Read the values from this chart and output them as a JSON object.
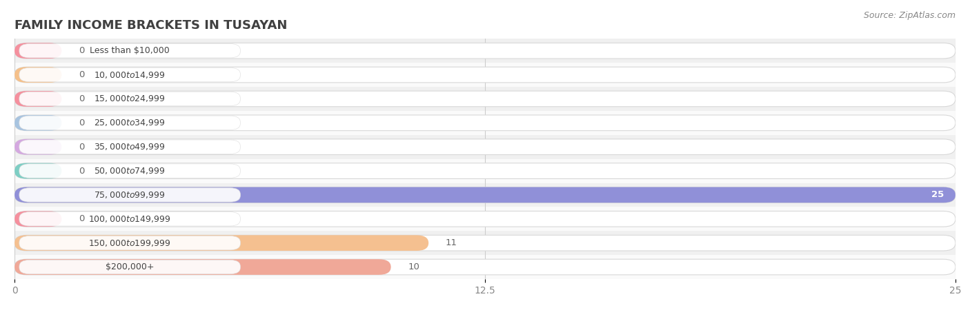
{
  "title": "FAMILY INCOME BRACKETS IN TUSAYAN",
  "source": "Source: ZipAtlas.com",
  "categories": [
    "Less than $10,000",
    "$10,000 to $14,999",
    "$15,000 to $24,999",
    "$25,000 to $34,999",
    "$35,000 to $49,999",
    "$50,000 to $74,999",
    "$75,000 to $99,999",
    "$100,000 to $149,999",
    "$150,000 to $199,999",
    "$200,000+"
  ],
  "values": [
    0,
    0,
    0,
    0,
    0,
    0,
    25,
    0,
    11,
    10
  ],
  "bar_colors": [
    "#f5909e",
    "#f5c08a",
    "#f5909e",
    "#a8c4e0",
    "#d4a8e0",
    "#7ecec4",
    "#9090d8",
    "#f5909e",
    "#f5c090",
    "#f0a898"
  ],
  "bg_row_colors": [
    "#f0f0f0",
    "#fafafa"
  ],
  "xlim": [
    0,
    25
  ],
  "xticks": [
    0,
    12.5,
    25
  ],
  "xtick_labels": [
    "0",
    "12.5",
    "25"
  ],
  "value_label_color": "#666666",
  "title_color": "#404040",
  "background_color": "#ffffff",
  "bar_height": 0.65,
  "label_pill_color": "#ffffff",
  "label_text_color": "#444444"
}
